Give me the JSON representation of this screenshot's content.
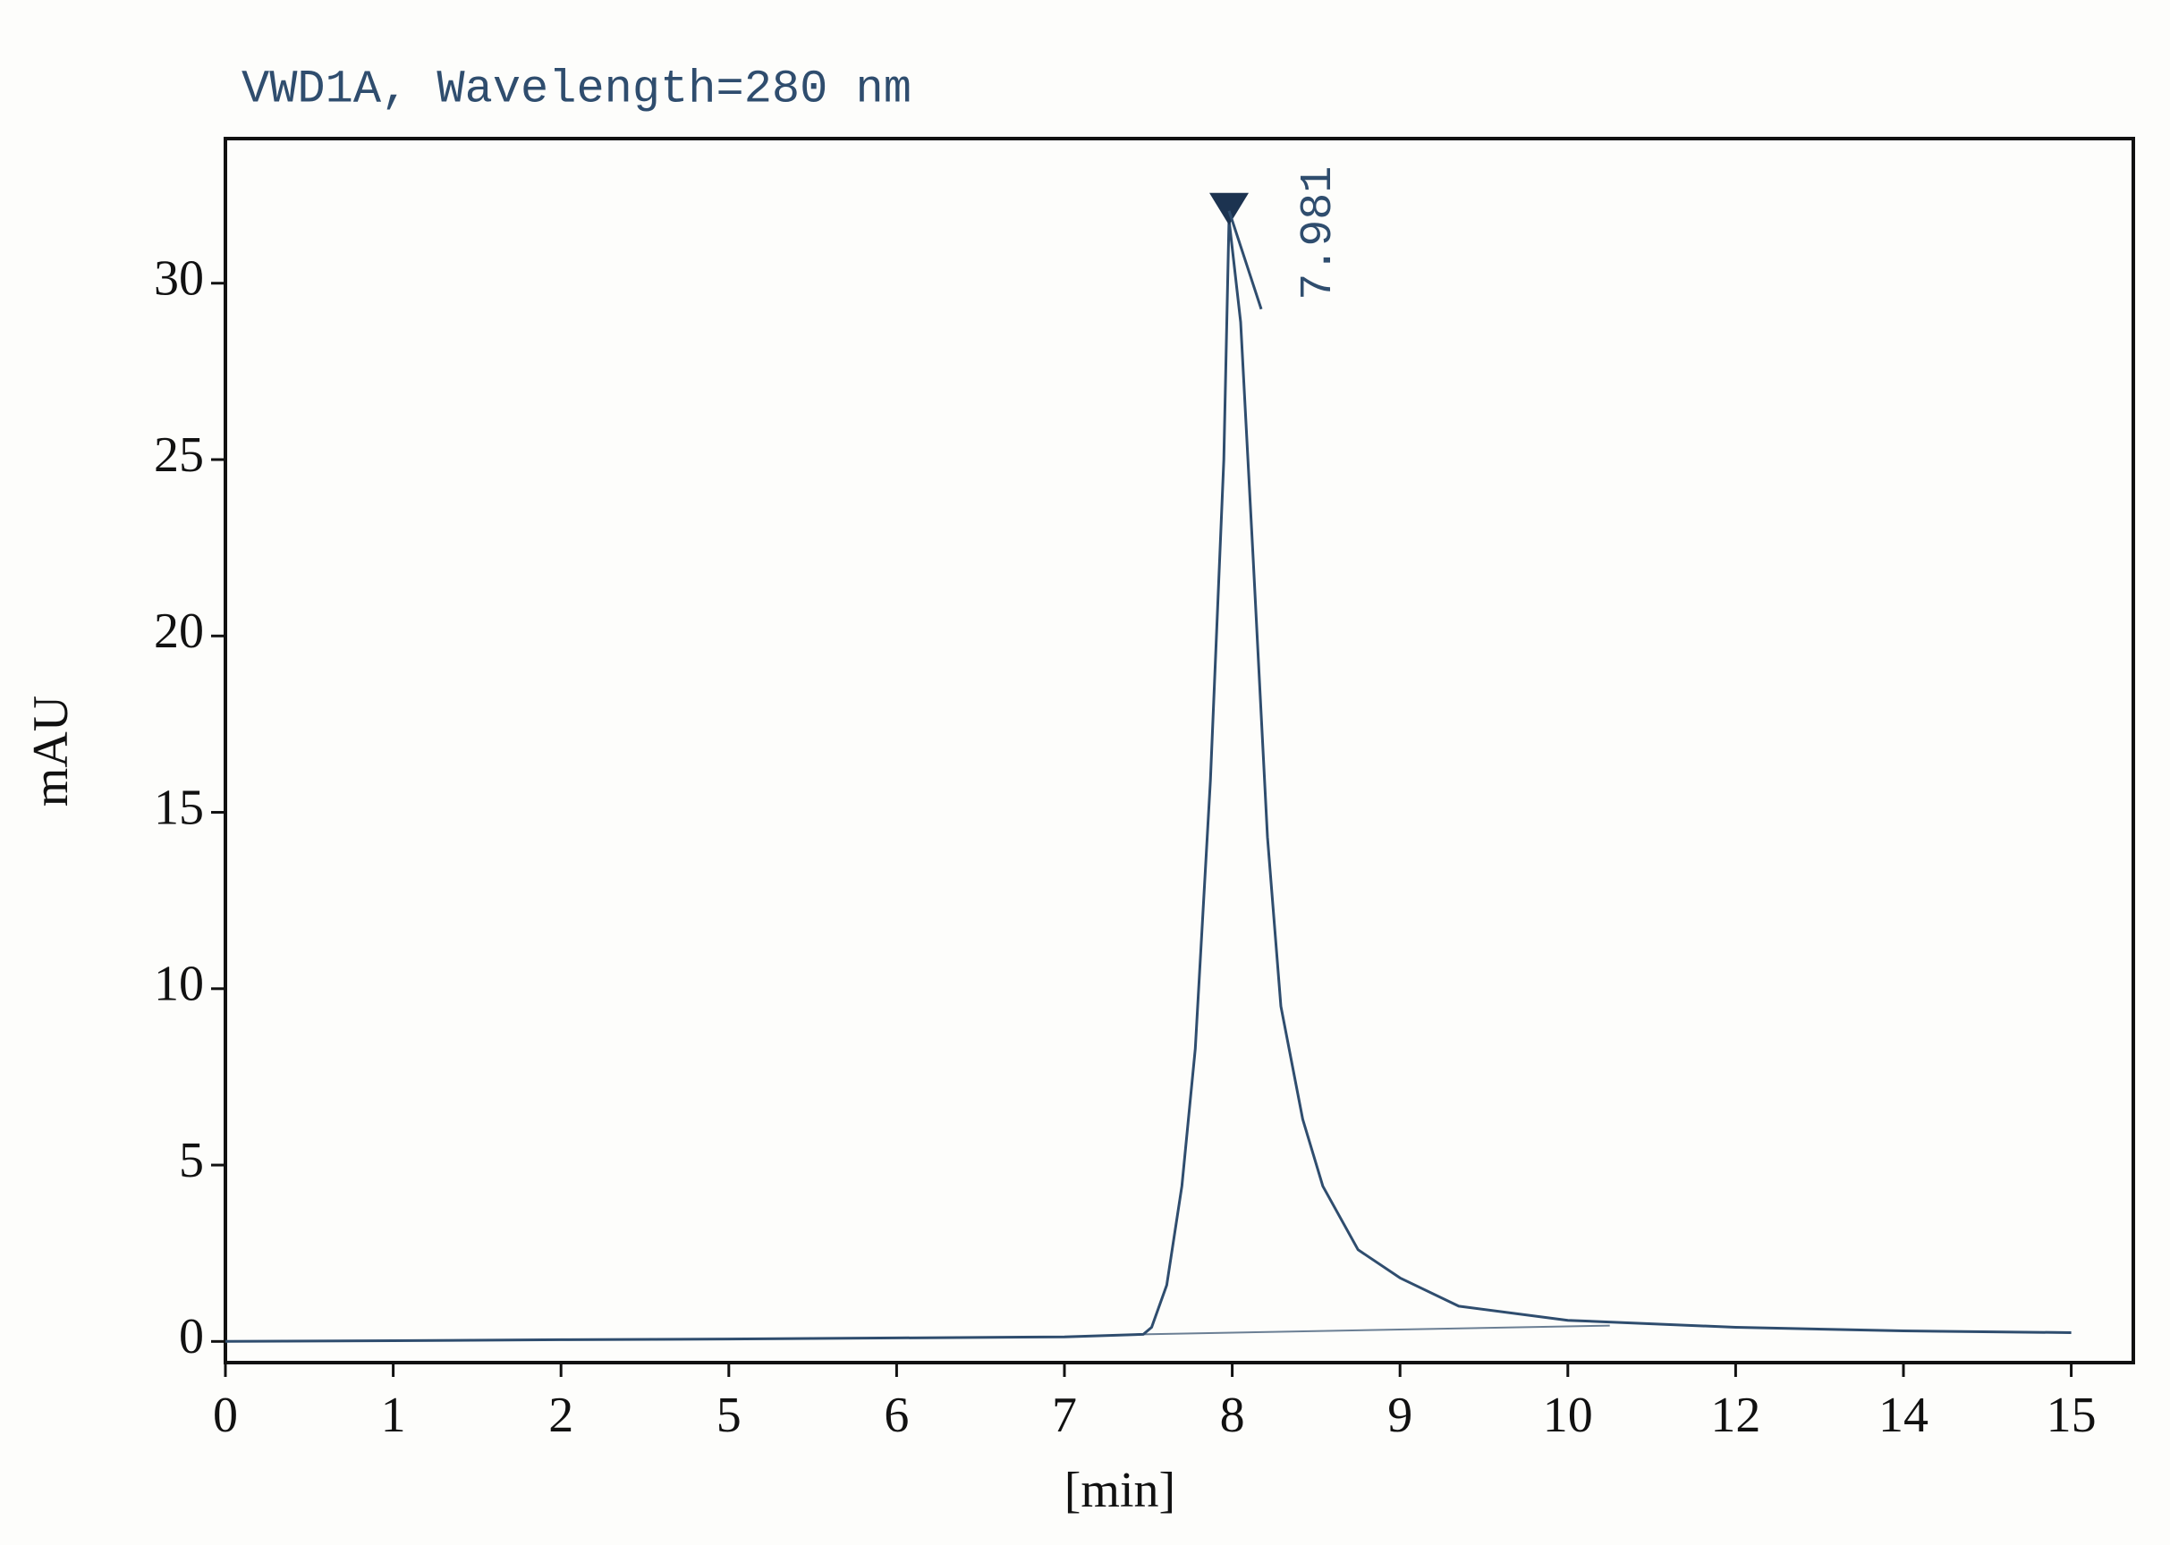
{
  "chart_data": {
    "type": "line",
    "title": "VWD1A, Wavelength=280 nm",
    "xlabel": "[min]",
    "ylabel": "mAU",
    "x": [
      0,
      1,
      2,
      5,
      6,
      7,
      7.47,
      7.52,
      7.61,
      7.7,
      7.78,
      7.87,
      7.95,
      7.981,
      8.05,
      8.125,
      8.21,
      8.29,
      8.42,
      8.54,
      8.75,
      9,
      9.35,
      10,
      12,
      14,
      15
    ],
    "series": [
      {
        "color": "#2f4d6e",
        "values": [
          0,
          0.02,
          0.05,
          0.07,
          0.1,
          0.13,
          0.2,
          0.4,
          1.6,
          4.4,
          8.3,
          15.9,
          25,
          31.8,
          28.9,
          22.2,
          14.3,
          9.5,
          6.3,
          4.4,
          2.6,
          1.8,
          1.0,
          0.6,
          0.4,
          0.3,
          0.25
        ]
      }
    ],
    "baseline": {
      "x": [
        7.47,
        10.5
      ],
      "values": [
        0.2,
        0.45
      ],
      "color": "#6b7f94"
    },
    "annotations": [
      {
        "x": 7.981,
        "y": 31.8
      }
    ],
    "xlim": [
      0,
      15.37
    ],
    "ylim": [
      -0.6,
      34.1
    ],
    "xticks": [
      0,
      1,
      2,
      5,
      6,
      7,
      8,
      9,
      10,
      12,
      14,
      15
    ],
    "yticks": [
      0,
      5,
      10,
      15,
      20,
      25,
      30
    ]
  }
}
